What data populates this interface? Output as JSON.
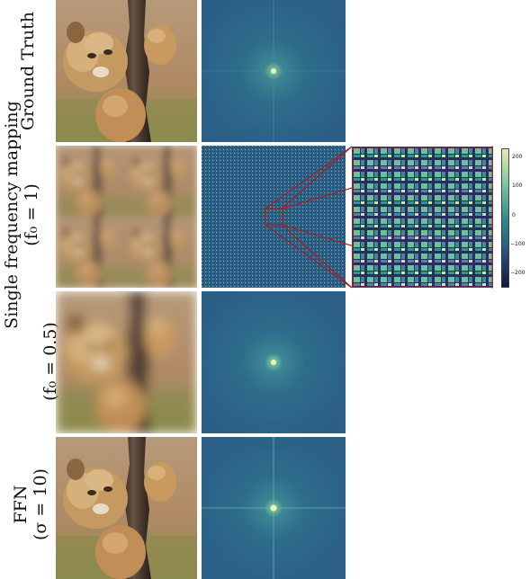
{
  "rows": [
    {
      "id": "ground-truth",
      "label_lines": [
        "Ground Truth"
      ],
      "photo": "sharp-lion-cub",
      "spectrum": "centered-peak"
    },
    {
      "id": "single-f1",
      "label_lines": [
        "Single frequency mapping",
        "(f₀ = 1)"
      ],
      "photo": "tiled-blurry-lion-cub",
      "spectrum": "periodic-grid"
    },
    {
      "id": "single-f05",
      "label_lines": [
        "(f₀ = 0.5)"
      ],
      "photo": "blurry-lion-cub",
      "spectrum": "centered-peak"
    },
    {
      "id": "ffn",
      "label_lines": [
        "FFN",
        "(σ = 10)"
      ],
      "photo": "sharp-lion-cub",
      "spectrum": "centered-peak-cross"
    }
  ],
  "colorbar": {
    "ticks": [
      "200",
      "100",
      "0",
      "−100",
      "−200"
    ],
    "colors": {
      "top": "#d9e8a8",
      "mid": "#2e8f8a",
      "bottom": "#1a1440"
    }
  },
  "zoom_outline_color": "#a0202a"
}
